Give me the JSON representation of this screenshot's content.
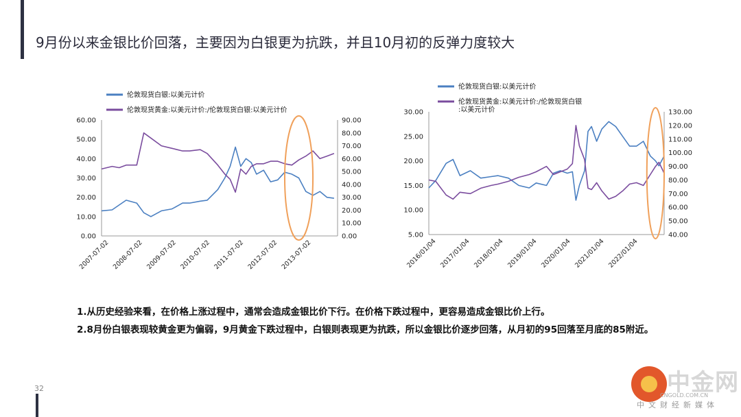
{
  "title": "9月份以来金银比价回落，主要因为白银更为抗跌，并且10月初的反弹力度较大",
  "page_number": "32",
  "notes": [
    "1.从历史经验来看，在价格上涨过程中，通常会造成金银比价下行。在价格下跌过程中，更容易造成金银比价上行。",
    "2.8月份白银表现较黄金更为偏弱，9月黄金下跌过程中，白银则表现更为抗跌，所以金银比价逐步回落，从月初的95回落至月底的85附近。"
  ],
  "watermark": {
    "name": "中金网",
    "url": "CNGOLD.COM.CN",
    "tagline": "中文财经新媒体"
  },
  "colors": {
    "silver": "#4a7fc1",
    "ratio": "#7a4c9e",
    "highlight": "#f0a05a",
    "accent": "#2d3142"
  },
  "chart_data": [
    {
      "type": "line",
      "legend": [
        "伦敦现货白银:以美元计价",
        "伦敦现货黄金:以美元计价:/伦敦现货白银:以美元计价"
      ],
      "x_ticks": [
        "2007-07-02",
        "2008-07-02",
        "2009-07-02",
        "2010-07-02",
        "2011-07-02",
        "2012-07-02",
        "2013-07-02"
      ],
      "y_left_ticks": [
        "0.00",
        "10.00",
        "20.00",
        "30.00",
        "40.00",
        "50.00",
        "60.00"
      ],
      "y_left_range": [
        0,
        60
      ],
      "y_right_ticks": [
        "0.00",
        "10.00",
        "20.00",
        "30.00",
        "40.00",
        "50.00",
        "60.00",
        "70.00",
        "80.00",
        "90.00"
      ],
      "y_right_range": [
        0,
        90
      ],
      "x_range": [
        2007.5,
        2014.2
      ],
      "highlight_ellipse": {
        "x_from": 2012.7,
        "x_to": 2013.5
      },
      "series": [
        {
          "name": "伦敦现货白银:以美元计价",
          "axis": "left",
          "x": [
            2007.5,
            2007.8,
            2008.0,
            2008.2,
            2008.5,
            2008.7,
            2008.9,
            2009.2,
            2009.5,
            2009.8,
            2010.0,
            2010.3,
            2010.5,
            2010.8,
            2011.0,
            2011.15,
            2011.3,
            2011.45,
            2011.6,
            2011.75,
            2011.9,
            2012.1,
            2012.3,
            2012.5,
            2012.7,
            2012.9,
            2013.1,
            2013.3,
            2013.5,
            2013.7,
            2013.9,
            2014.1
          ],
          "y": [
            13,
            13.5,
            16,
            18.5,
            17,
            12,
            10,
            13,
            14,
            17,
            17,
            18,
            18.5,
            24,
            30,
            36,
            46,
            36,
            40,
            38,
            32,
            34,
            28,
            29,
            33,
            32,
            30,
            23,
            21,
            23,
            20,
            19.5
          ]
        },
        {
          "name": "伦敦现货黄金:以美元计价:/伦敦现货白银:以美元计价",
          "axis": "right",
          "x": [
            2007.5,
            2007.8,
            2008.0,
            2008.2,
            2008.5,
            2008.7,
            2008.9,
            2009.2,
            2009.5,
            2009.8,
            2010.0,
            2010.3,
            2010.5,
            2010.8,
            2011.0,
            2011.15,
            2011.3,
            2011.45,
            2011.6,
            2011.75,
            2011.9,
            2012.1,
            2012.3,
            2012.5,
            2012.7,
            2012.9,
            2013.1,
            2013.3,
            2013.5,
            2013.7,
            2013.9,
            2014.1
          ],
          "y": [
            52,
            54,
            53,
            55,
            55,
            80,
            76,
            70,
            68,
            66,
            66,
            67,
            64,
            55,
            48,
            44,
            34,
            52,
            48,
            54,
            56,
            56,
            58,
            58,
            56,
            55,
            59,
            62,
            66,
            60,
            62,
            64
          ]
        }
      ]
    },
    {
      "type": "line",
      "legend": [
        "伦敦现货白银:以美元计价",
        "伦敦现货黄金:以美元计价:/伦敦现货白银:以美元计价"
      ],
      "x_ticks": [
        "2016/01/04",
        "2017/01/04",
        "2018/01/04",
        "2019/01/04",
        "2020/01/04",
        "2021/01/04",
        "2022/01/04"
      ],
      "y_left_ticks": [
        "5.00",
        "10.00",
        "15.00",
        "20.00",
        "25.00",
        "30.00"
      ],
      "y_left_range": [
        5,
        30
      ],
      "y_right_ticks": [
        "40.00",
        "50.00",
        "60.00",
        "70.00",
        "80.00",
        "90.00",
        "100.00",
        "110.00",
        "120.00",
        "130.00"
      ],
      "y_right_range": [
        40,
        130
      ],
      "x_range": [
        2016.0,
        2022.8
      ],
      "highlight_ellipse": {
        "x_from": 2022.3,
        "x_to": 2022.8
      },
      "series": [
        {
          "name": "伦敦现货白银:以美元计价",
          "axis": "left",
          "x": [
            2016.0,
            2016.2,
            2016.5,
            2016.7,
            2016.9,
            2017.2,
            2017.5,
            2017.8,
            2018.0,
            2018.3,
            2018.6,
            2018.9,
            2019.1,
            2019.4,
            2019.6,
            2019.8,
            2020.0,
            2020.15,
            2020.25,
            2020.35,
            2020.5,
            2020.6,
            2020.7,
            2020.85,
            2021.0,
            2021.2,
            2021.4,
            2021.6,
            2021.8,
            2022.0,
            2022.2,
            2022.4,
            2022.55,
            2022.65,
            2022.8
          ],
          "y": [
            14.5,
            16,
            19.5,
            20.3,
            17,
            18,
            16.5,
            16.8,
            17,
            16.5,
            15,
            14.5,
            15.5,
            15,
            17.5,
            18,
            17.5,
            17.8,
            12,
            15,
            18,
            26,
            27,
            24,
            26.5,
            28,
            27,
            25,
            23,
            23,
            24,
            21,
            20,
            19,
            21
          ]
        },
        {
          "name": "伦敦现货黄金:以美元计价:/伦敦现货白银:以美元计价",
          "axis": "right",
          "x": [
            2016.0,
            2016.2,
            2016.5,
            2016.7,
            2016.9,
            2017.2,
            2017.5,
            2017.8,
            2018.0,
            2018.3,
            2018.6,
            2018.9,
            2019.1,
            2019.4,
            2019.6,
            2019.8,
            2020.0,
            2020.15,
            2020.25,
            2020.35,
            2020.5,
            2020.6,
            2020.7,
            2020.85,
            2021.0,
            2021.2,
            2021.4,
            2021.6,
            2021.8,
            2022.0,
            2022.2,
            2022.4,
            2022.55,
            2022.65,
            2022.8
          ],
          "y": [
            80,
            79,
            69,
            66,
            71,
            70,
            74,
            76,
            77,
            79,
            82,
            84,
            86,
            90,
            84,
            86,
            88,
            92,
            120,
            105,
            95,
            74,
            73,
            78,
            72,
            66,
            68,
            72,
            77,
            78,
            76,
            84,
            90,
            93,
            85
          ]
        }
      ]
    }
  ]
}
